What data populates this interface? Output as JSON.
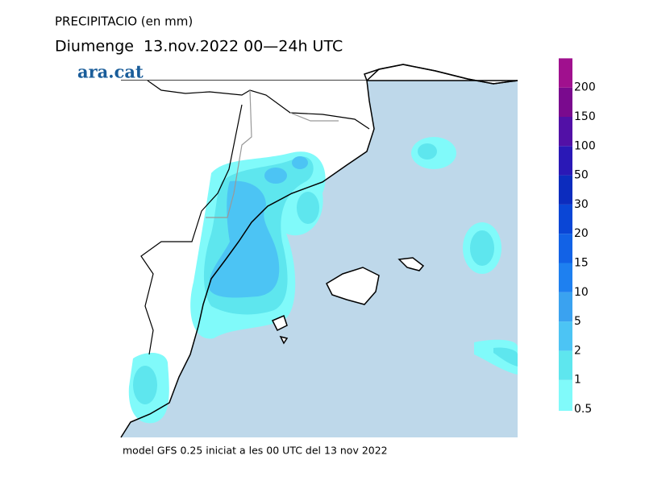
{
  "header": {
    "title": "PRECIPITACIO (en mm)",
    "subtitle": "Diumenge  13.nov.2022 00—24h UTC",
    "logo": "ara.cat"
  },
  "legend": {
    "items": [
      {
        "label": "0.5",
        "color": "#80fafa"
      },
      {
        "label": "1",
        "color": "#5ee6ee"
      },
      {
        "label": "2",
        "color": "#4cc4f4"
      },
      {
        "label": "5",
        "color": "#3aa2f0"
      },
      {
        "label": "10",
        "color": "#1e80f0"
      },
      {
        "label": "15",
        "color": "#1262e6"
      },
      {
        "label": "20",
        "color": "#0a46d6"
      },
      {
        "label": "30",
        "color": "#0c2cbe"
      },
      {
        "label": "50",
        "color": "#2a18b6"
      },
      {
        "label": "100",
        "color": "#5210a6"
      },
      {
        "label": "150",
        "color": "#7a0a8e"
      },
      {
        "label": "200",
        "color": "#a0108e"
      }
    ],
    "top_color": "#d020b8"
  },
  "footer": "model GFS 0.25 iniciat a les 00 UTC del 13 nov 2022"
}
